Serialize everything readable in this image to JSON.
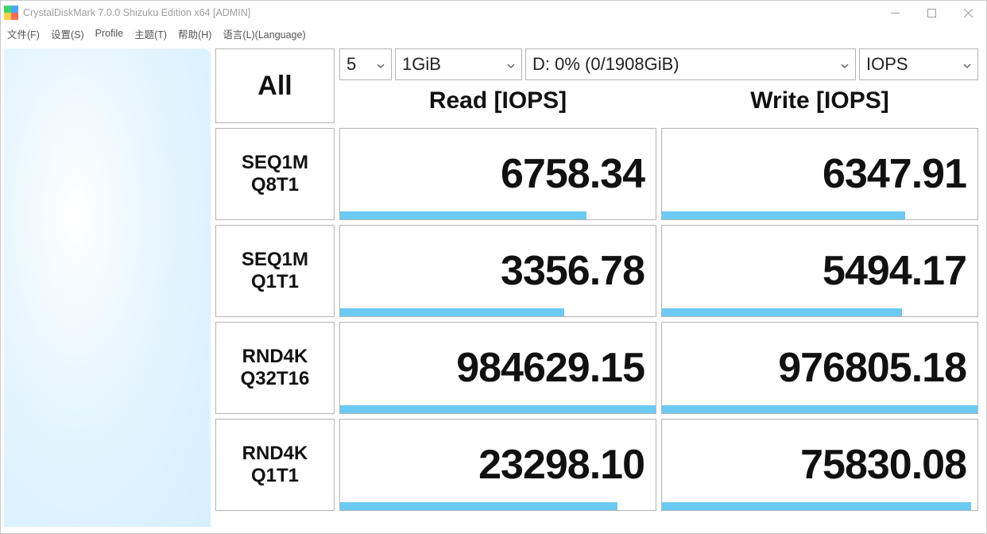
{
  "window": {
    "title": "CrystalDiskMark 7.0.0 Shizuku Edition x64 [ADMIN]",
    "icon_colors": [
      "#3fd46b",
      "#4aa6ff",
      "#ffd24a",
      "#fb6e52"
    ]
  },
  "menu": {
    "items": [
      "文件(F)",
      "设置(S)",
      "Profile",
      "主题(T)",
      "帮助(H)",
      "语言(L)(Language)"
    ]
  },
  "controls": {
    "all_button": "All",
    "test_count": "5",
    "test_size": "1GiB",
    "drive": "D: 0% (0/1908GiB)",
    "metric": "IOPS"
  },
  "columns": {
    "read": "Read [IOPS]",
    "write": "Write [IOPS]"
  },
  "colors": {
    "bar": "#6bcaf2",
    "border": "#b4b4b4",
    "text": "#111111",
    "titlebar_text": "#9e9e9e",
    "background": "#ffffff"
  },
  "rows": [
    {
      "label_line1": "SEQ1M",
      "label_line2": "Q8T1",
      "read": "6758.34",
      "read_bar_pct": 78,
      "write": "6347.91",
      "write_bar_pct": 77
    },
    {
      "label_line1": "SEQ1M",
      "label_line2": "Q1T1",
      "read": "3356.78",
      "read_bar_pct": 71,
      "write": "5494.17",
      "write_bar_pct": 76
    },
    {
      "label_line1": "RND4K",
      "label_line2": "Q32T16",
      "read": "984629.15",
      "read_bar_pct": 100,
      "write": "976805.18",
      "write_bar_pct": 100
    },
    {
      "label_line1": "RND4K",
      "label_line2": "Q1T1",
      "read": "23298.10",
      "read_bar_pct": 88,
      "write": "75830.08",
      "write_bar_pct": 98
    }
  ]
}
